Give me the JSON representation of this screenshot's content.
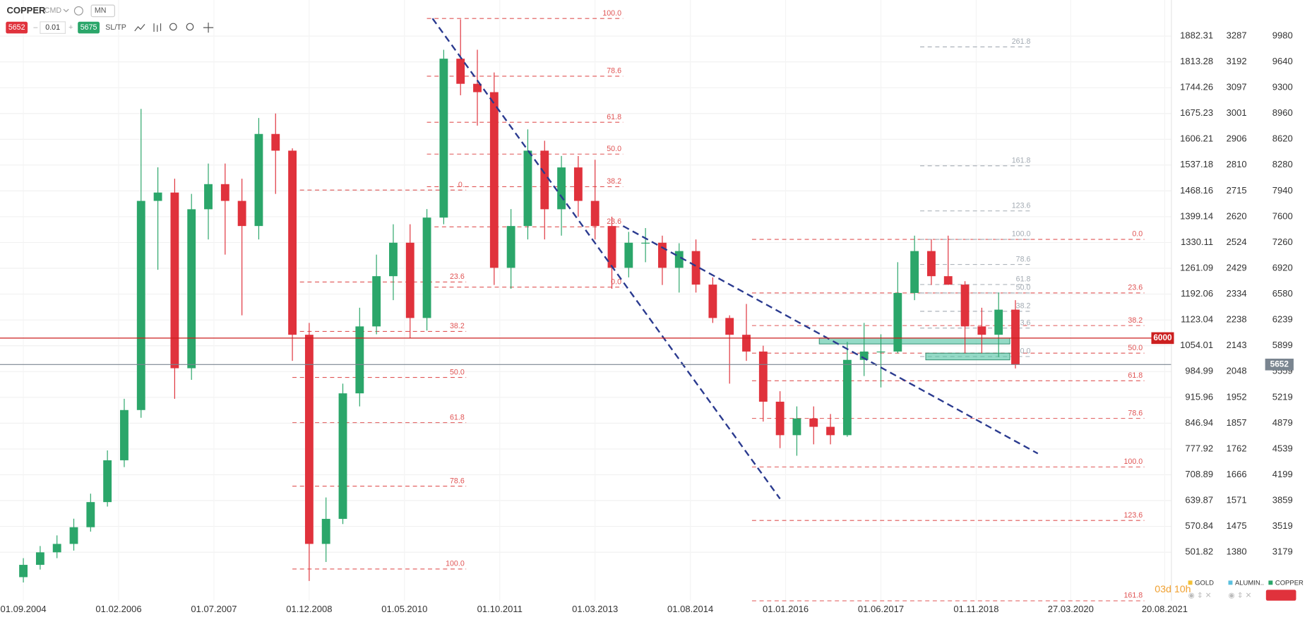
{
  "toolbar": {
    "symbol": "COPPER",
    "market": "CMD",
    "interval": "MN",
    "sell": 5652,
    "volume": 0.01,
    "buy": 5675,
    "sltp": "SL/TP"
  },
  "chart_data": {
    "type": "candlestick",
    "x": [
      "01.09.2004",
      "01.12.2004",
      "01.03.2005",
      "01.06.2005",
      "01.09.2005",
      "01.12.2005",
      "01.03.2006",
      "01.06.2006",
      "01.09.2006",
      "01.12.2006",
      "01.03.2007",
      "01.06.2007",
      "01.09.2007",
      "01.12.2007",
      "01.03.2008",
      "01.06.2008",
      "01.09.2008",
      "01.12.2008",
      "01.03.2009",
      "01.06.2009",
      "01.09.2009",
      "01.12.2009",
      "01.03.2010",
      "01.06.2010",
      "01.09.2010",
      "01.12.2010",
      "01.03.2011",
      "01.06.2011",
      "01.09.2011",
      "01.12.2011",
      "01.03.2012",
      "01.06.2012",
      "01.09.2012",
      "01.12.2012",
      "01.03.2013",
      "01.06.2013",
      "01.09.2013",
      "01.12.2013",
      "01.03.2014",
      "01.06.2014",
      "01.09.2014",
      "01.12.2014",
      "01.03.2015",
      "01.06.2015",
      "01.09.2015",
      "01.12.2015",
      "01.03.2016",
      "01.06.2016",
      "01.09.2016",
      "01.12.2016",
      "01.03.2017",
      "01.06.2017",
      "01.09.2017",
      "01.12.2017",
      "01.03.2018",
      "01.06.2018",
      "01.09.2018",
      "01.12.2018",
      "01.03.2019",
      "01.06.2019"
    ],
    "open": [
      2850,
      3012,
      3177,
      3288,
      3508,
      3839,
      4390,
      5052,
      7808,
      7918,
      5603,
      7698,
      8029,
      7808,
      7477,
      8690,
      8470,
      6044,
      3288,
      3618,
      5272,
      6154,
      6816,
      7257,
      6265,
      7588,
      9682,
      9351,
      9241,
      6926,
      7477,
      8470,
      7698,
      8249,
      7808,
      7477,
      6926,
      7257,
      7257,
      6926,
      7147,
      6705,
      6265,
      6044,
      5823,
      5162,
      4721,
      4941,
      4831,
      4721,
      5713,
      5823,
      5823,
      6595,
      7147,
      6816,
      6705,
      6154,
      6044,
      6375
    ],
    "high": [
      3100,
      3260,
      3400,
      3620,
      3950,
      4520,
      5200,
      9020,
      8250,
      8100,
      7900,
      8300,
      8300,
      8100,
      8900,
      8960,
      8500,
      6200,
      3900,
      5400,
      6400,
      7100,
      7500,
      7500,
      7700,
      9800,
      10200,
      9800,
      9500,
      7700,
      8750,
      8600,
      8400,
      8400,
      8350,
      7600,
      7400,
      7450,
      7350,
      7250,
      7300,
      6800,
      6300,
      6450,
      5900,
      5300,
      5100,
      5100,
      5000,
      5950,
      6200,
      6050,
      7000,
      7350,
      7300,
      7350,
      6750,
      6400,
      6600,
      6500
    ],
    "low": [
      2780,
      2950,
      3100,
      3200,
      3450,
      3780,
      4300,
      4950,
      6900,
      5200,
      5450,
      7300,
      7100,
      6300,
      7300,
      7900,
      5700,
      2800,
      3050,
      3550,
      5100,
      6050,
      6500,
      6000,
      6100,
      7500,
      9200,
      8800,
      6700,
      6650,
      7300,
      7300,
      7350,
      7600,
      7300,
      6650,
      6800,
      7000,
      6700,
      6600,
      6600,
      6200,
      5400,
      5700,
      4900,
      4550,
      4450,
      4600,
      4600,
      4700,
      5500,
      5350,
      5800,
      6500,
      6700,
      6700,
      5800,
      5800,
      5750,
      5600
    ],
    "close": [
      3012,
      3177,
      3288,
      3508,
      3839,
      4390,
      5052,
      7808,
      7918,
      5603,
      7698,
      8029,
      7808,
      7477,
      8690,
      8470,
      6044,
      3288,
      3618,
      5272,
      6154,
      6816,
      7257,
      6265,
      7588,
      9682,
      9351,
      9241,
      6926,
      7477,
      8470,
      7698,
      8249,
      7808,
      7477,
      6926,
      7257,
      7257,
      6926,
      7147,
      6705,
      6265,
      6044,
      5823,
      5162,
      4721,
      4941,
      4831,
      4721,
      5713,
      5823,
      5823,
      6595,
      7147,
      6816,
      6705,
      6154,
      6044,
      6375,
      5652
    ],
    "up_color": "#2ba66a",
    "down_color": "#e0323c",
    "xlim": [
      "26.04.2004",
      "26.09.2021"
    ],
    "xticks": [
      "01.09.2004",
      "01.02.2006",
      "01.07.2007",
      "01.12.2008",
      "01.05.2010",
      "01.10.2011",
      "01.03.2013",
      "01.08.2014",
      "01.01.2016",
      "01.06.2017",
      "01.11.2018",
      "27.03.2020",
      "20.08.2021"
    ],
    "ylim": [
      2540,
      10290
    ],
    "yticks": [
      9980,
      9640,
      9300,
      8960,
      8620,
      8280,
      7940,
      7600,
      7260,
      6920,
      6580,
      6239,
      5899,
      5559,
      5219,
      4879,
      4539,
      4199,
      3859,
      3519,
      3179
    ],
    "gold_ticks": [
      1882.31,
      1813.28,
      1744.26,
      1675.23,
      1606.21,
      1537.18,
      1468.16,
      1399.14,
      1330.11,
      1261.09,
      1192.06,
      1123.04,
      1054.01,
      984.99,
      915.96,
      846.94,
      777.92,
      708.89,
      639.87,
      570.84,
      501.82
    ],
    "aluminum_ticks": [
      3287,
      3192,
      3097,
      3001,
      2906,
      2810,
      2715,
      2620,
      2524,
      2429,
      2334,
      2238,
      2143,
      2048,
      1952,
      1857,
      1762,
      1666,
      1571,
      1475,
      1380
    ],
    "grid": true,
    "levels": [
      {
        "value": 6000,
        "color": "#cc1f1f"
      },
      {
        "value": 5652,
        "color": "#7a8590"
      }
    ],
    "fib_sets": [
      {
        "color": "#e05555",
        "x1": "01.09.2008",
        "x2": "01.04.2011",
        "levels": [
          {
            "label": "0.",
            "value": 7951
          },
          {
            "label": "23.6",
            "value": 6739
          },
          {
            "label": "38.2",
            "value": 6088
          },
          {
            "label": "50.0",
            "value": 5482
          },
          {
            "label": "61.8",
            "value": 4886
          },
          {
            "label": "78.6",
            "value": 4049
          },
          {
            "label": "100.0",
            "value": 2957
          }
        ]
      },
      {
        "color": "#e05555",
        "x1": "01.09.2010",
        "x2": "01.08.2013",
        "levels": [
          {
            "label": "100.0",
            "value": 10212
          },
          {
            "label": "78.6",
            "value": 9451
          },
          {
            "label": "61.8",
            "value": 8844
          },
          {
            "label": "50.0",
            "value": 8425
          },
          {
            "label": "38.2",
            "value": 7995
          },
          {
            "label": "23.6",
            "value": 7466
          },
          {
            "label": "0.0",
            "value": 6672
          }
        ]
      },
      {
        "color": "#e05555",
        "x1": "01.07.2015",
        "x2": "01.05.2021",
        "levels": [
          {
            "label": "0.0",
            "value": 7301
          },
          {
            "label": "23.6",
            "value": 6595
          },
          {
            "label": "38.2",
            "value": 6165
          },
          {
            "label": "50.0",
            "value": 5802
          },
          {
            "label": "61.8",
            "value": 5438
          },
          {
            "label": "78.6",
            "value": 4942
          },
          {
            "label": "100.0",
            "value": 4302
          },
          {
            "label": "123.6",
            "value": 3597
          },
          {
            "label": "161.8",
            "value": 2538
          }
        ]
      },
      {
        "color": "#a3abb3",
        "x1": "01.01.2018",
        "x2": "01.09.2019",
        "levels": [
          {
            "label": "261.8",
            "value": 9837
          },
          {
            "label": "161.8",
            "value": 8271
          },
          {
            "label": "123.6",
            "value": 7676
          },
          {
            "label": "100.0",
            "value": 7301
          },
          {
            "label": "78.6",
            "value": 6970
          },
          {
            "label": "61.8",
            "value": 6706
          },
          {
            "label": "50.0",
            "value": 6595
          },
          {
            "label": "38.2",
            "value": 6353
          },
          {
            "label": "23.6",
            "value": 6132
          },
          {
            "label": "0.0",
            "value": 5757
          }
        ]
      }
    ],
    "trend_lines": [
      {
        "x": [
          "01.10.2010",
          "01.12.2015"
        ],
        "y": [
          10212,
          3883
        ],
        "color": "#2a3a8f"
      },
      {
        "x": [
          "01.08.2013",
          "01.10.2019"
        ],
        "y": [
          7477,
          4479
        ],
        "color": "#2a3a8f"
      }
    ],
    "zones": [
      {
        "x": [
          "01.07.2016",
          "01.05.2019"
        ],
        "y": [
          6000,
          5923
        ],
        "color": "#4cc2a0"
      },
      {
        "x": [
          "01.02.2018",
          "01.05.2019"
        ],
        "y": [
          5802,
          5713
        ],
        "color": "#4cc2a0"
      }
    ],
    "timer": "03d 10h",
    "legend": [
      {
        "name": "GOLD",
        "color": "#f2c037"
      },
      {
        "name": "ALUMIN..",
        "color": "#5bc0de"
      },
      {
        "name": "COPPER",
        "color": "#2ba66a"
      }
    ]
  }
}
